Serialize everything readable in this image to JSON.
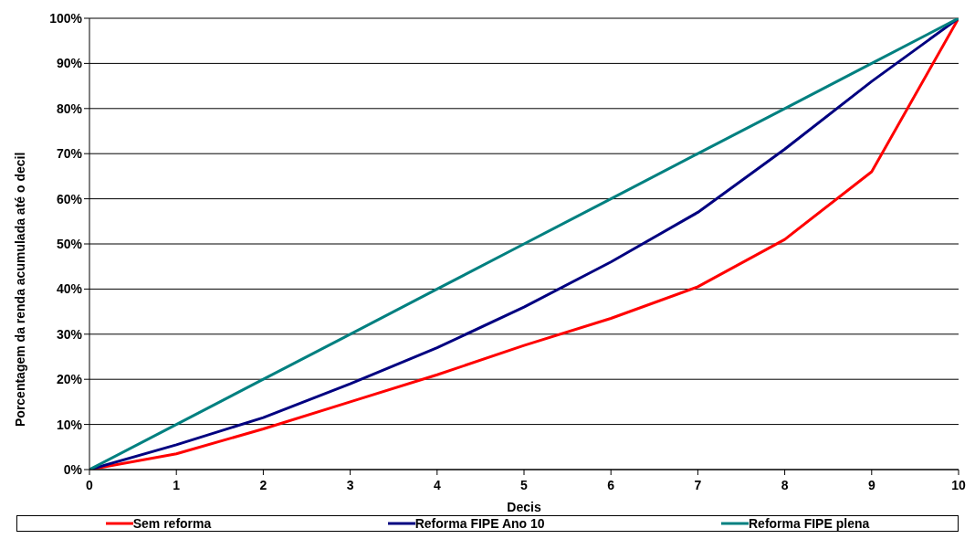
{
  "chart_data": {
    "type": "line",
    "xlabel": "Decis",
    "ylabel": "Porcentagem da renda acumulada até o decil",
    "x": [
      0,
      1,
      2,
      3,
      4,
      5,
      6,
      7,
      8,
      9,
      10
    ],
    "series": [
      {
        "name": "Sem reforma",
        "color": "#ff0000",
        "values": [
          0,
          3.5,
          9,
          15,
          21,
          27.5,
          33.5,
          40.5,
          51,
          66,
          100
        ]
      },
      {
        "name": "Reforma FIPE Ano 10",
        "color": "#000080",
        "values": [
          0,
          5.5,
          11.5,
          19,
          27,
          36,
          46,
          57,
          71,
          86,
          100
        ]
      },
      {
        "name": "Reforma FIPE plena",
        "color": "#008080",
        "values": [
          0,
          10,
          20,
          30,
          40,
          50,
          60,
          70,
          80,
          90,
          100
        ]
      }
    ],
    "xlim": [
      0,
      10
    ],
    "xticks": [
      0,
      1,
      2,
      3,
      4,
      5,
      6,
      7,
      8,
      9,
      10
    ],
    "ylim": [
      0,
      100
    ],
    "yticks": [
      {
        "value": 0,
        "label": "0%"
      },
      {
        "value": 10,
        "label": "10%"
      },
      {
        "value": 20,
        "label": "20%"
      },
      {
        "value": 30,
        "label": "30%"
      },
      {
        "value": 40,
        "label": "40%"
      },
      {
        "value": 50,
        "label": "50%"
      },
      {
        "value": 60,
        "label": "60%"
      },
      {
        "value": 70,
        "label": "70%"
      },
      {
        "value": 80,
        "label": "80%"
      },
      {
        "value": 90,
        "label": "90%"
      },
      {
        "value": 100,
        "label": "100%"
      }
    ],
    "grid": "y",
    "legend": "bottom",
    "marker": "none",
    "line_style": "solid"
  }
}
